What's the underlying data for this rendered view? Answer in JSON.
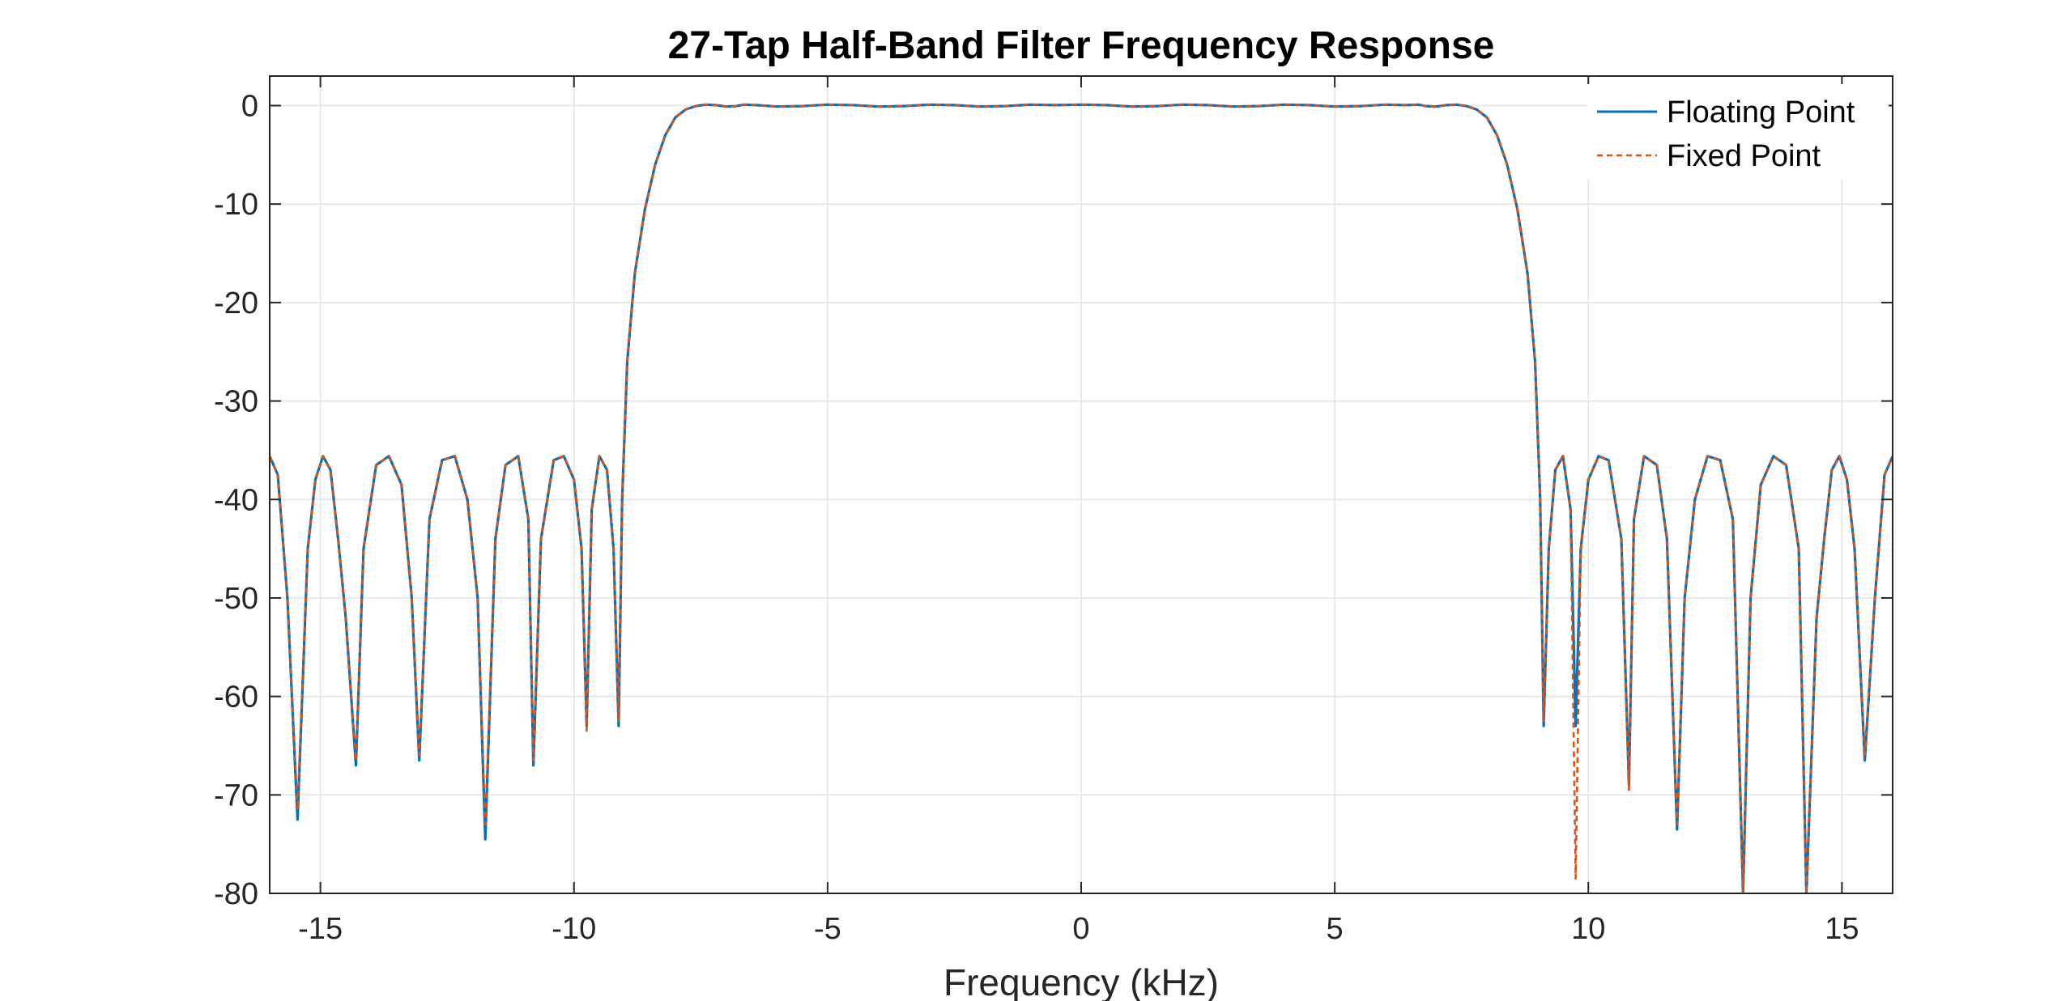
{
  "chart_data": {
    "type": "line",
    "title": "27-Tap Half-Band Filter Frequency Response",
    "xlabel": "Frequency (kHz)",
    "ylabel": "",
    "xlim": [
      -16,
      16
    ],
    "ylim": [
      -80,
      3
    ],
    "xticks": [
      -15,
      -10,
      -5,
      0,
      5,
      10,
      15
    ],
    "xtick_labels": [
      "-15",
      "-10",
      "-5",
      "0",
      "5",
      "10",
      "15"
    ],
    "yticks": [
      0,
      -10,
      -20,
      -30,
      -40,
      -50,
      -60,
      -70,
      -80
    ],
    "ytick_labels": [
      "0",
      "-10",
      "-20",
      "-30",
      "-40",
      "-50",
      "-60",
      "-70",
      "-80"
    ],
    "grid": true,
    "legend_position": "top-right",
    "series": [
      {
        "name": "Floating Point",
        "style": "solid",
        "color": "#0072BD",
        "x": [
          -16.0,
          -15.84,
          -15.65,
          -15.45,
          -15.25,
          -15.1,
          -14.95,
          -14.8,
          -14.65,
          -14.5,
          -14.3,
          -14.15,
          -13.9,
          -13.65,
          -13.4,
          -13.2,
          -13.05,
          -12.85,
          -12.6,
          -12.35,
          -12.1,
          -11.9,
          -11.75,
          -11.55,
          -11.35,
          -11.1,
          -10.9,
          -10.8,
          -10.65,
          -10.4,
          -10.2,
          -10.0,
          -9.85,
          -9.75,
          -9.65,
          -9.5,
          -9.35,
          -9.22,
          -9.12,
          -9.05,
          -8.95,
          -8.8,
          -8.6,
          -8.4,
          -8.2,
          -8.0,
          -7.8,
          -7.6,
          -7.4,
          -7.2,
          -7.0,
          -6.8,
          -6.65,
          -6.4,
          -6.0,
          -5.5,
          -5.0,
          -4.5,
          -4.0,
          -3.5,
          -3.0,
          -2.5,
          -2.0,
          -1.5,
          -1.0,
          -0.5,
          0.0,
          0.5,
          1.0,
          1.5,
          2.0,
          2.5,
          3.0,
          3.5,
          4.0,
          4.5,
          5.0,
          5.5,
          6.0,
          6.4,
          6.65,
          6.8,
          7.0,
          7.2,
          7.4,
          7.6,
          7.8,
          8.0,
          8.2,
          8.4,
          8.6,
          8.8,
          8.95,
          9.05,
          9.12,
          9.22,
          9.35,
          9.5,
          9.65,
          9.75,
          9.85,
          10.0,
          10.2,
          10.4,
          10.65,
          10.8,
          10.9,
          11.1,
          11.35,
          11.55,
          11.75,
          11.9,
          12.1,
          12.35,
          12.6,
          12.85,
          13.05,
          13.2,
          13.4,
          13.65,
          13.9,
          14.15,
          14.3,
          14.5,
          14.65,
          14.8,
          14.95,
          15.1,
          15.25,
          15.45,
          15.65,
          15.84,
          16.0
        ],
        "y": [
          -35.6,
          -37.5,
          -50.0,
          -72.5,
          -45.0,
          -38.0,
          -35.6,
          -37.0,
          -44.0,
          -52.0,
          -67.0,
          -45.0,
          -36.5,
          -35.6,
          -38.5,
          -50.0,
          -66.5,
          -42.0,
          -36.0,
          -35.6,
          -40.0,
          -50.0,
          -74.5,
          -44.0,
          -36.5,
          -35.6,
          -42.0,
          -67.0,
          -44.0,
          -36.0,
          -35.6,
          -38.0,
          -45.0,
          -63.0,
          -41.0,
          -35.6,
          -37.0,
          -45.0,
          -63.0,
          -40.0,
          -26.0,
          -17.0,
          -10.5,
          -6.0,
          -3.0,
          -1.2,
          -0.4,
          -0.05,
          0.1,
          0.05,
          -0.1,
          -0.05,
          0.1,
          0.05,
          -0.1,
          -0.05,
          0.1,
          0.05,
          -0.1,
          -0.05,
          0.1,
          0.05,
          -0.1,
          -0.05,
          0.1,
          0.05,
          0.1,
          0.05,
          -0.1,
          -0.05,
          0.1,
          0.05,
          -0.1,
          -0.05,
          0.1,
          0.05,
          -0.1,
          -0.05,
          0.1,
          0.05,
          0.1,
          -0.05,
          -0.1,
          0.05,
          0.1,
          -0.05,
          -0.4,
          -1.2,
          -3.0,
          -6.0,
          -10.5,
          -17.0,
          -26.0,
          -40.0,
          -63.0,
          -45.0,
          -37.0,
          -35.6,
          -41.0,
          -63.0,
          -45.0,
          -38.0,
          -35.6,
          -36.0,
          -44.0,
          -69.0,
          -42.0,
          -35.6,
          -36.5,
          -44.0,
          -73.5,
          -50.0,
          -40.0,
          -35.6,
          -36.0,
          -42.0,
          -80.0,
          -50.0,
          -38.5,
          -35.6,
          -36.5,
          -45.0,
          -80.0,
          -52.0,
          -44.0,
          -37.0,
          -35.6,
          -38.0,
          -45.0,
          -66.5,
          -50.0,
          -37.5,
          -35.6
        ]
      },
      {
        "name": "Fixed Point",
        "style": "dashed",
        "color": "#D95319",
        "x": [
          -16.0,
          -15.84,
          -15.65,
          -15.45,
          -15.25,
          -15.1,
          -14.95,
          -14.8,
          -14.65,
          -14.5,
          -14.3,
          -14.15,
          -13.9,
          -13.65,
          -13.4,
          -13.2,
          -13.05,
          -12.85,
          -12.6,
          -12.35,
          -12.1,
          -11.9,
          -11.75,
          -11.55,
          -11.35,
          -11.1,
          -10.9,
          -10.8,
          -10.65,
          -10.4,
          -10.2,
          -10.0,
          -9.85,
          -9.75,
          -9.65,
          -9.5,
          -9.35,
          -9.22,
          -9.12,
          -9.05,
          -8.95,
          -8.8,
          -8.6,
          -8.4,
          -8.2,
          -8.0,
          -7.8,
          -7.6,
          -7.4,
          -7.2,
          -7.0,
          -6.8,
          -6.65,
          -6.4,
          -6.0,
          -5.5,
          -5.0,
          -4.5,
          -4.0,
          -3.5,
          -3.0,
          -2.5,
          -2.0,
          -1.5,
          -1.0,
          -0.5,
          0.0,
          0.5,
          1.0,
          1.5,
          2.0,
          2.5,
          3.0,
          3.5,
          4.0,
          4.5,
          5.0,
          5.5,
          6.0,
          6.4,
          6.65,
          6.8,
          7.0,
          7.2,
          7.4,
          7.6,
          7.8,
          8.0,
          8.2,
          8.4,
          8.6,
          8.8,
          8.95,
          9.05,
          9.12,
          9.22,
          9.35,
          9.5,
          9.65,
          9.75,
          9.85,
          10.0,
          10.2,
          10.4,
          10.65,
          10.8,
          10.9,
          11.1,
          11.35,
          11.55,
          11.75,
          11.9,
          12.1,
          12.35,
          12.6,
          12.85,
          13.05,
          13.2,
          13.4,
          13.65,
          13.9,
          14.15,
          14.3,
          14.5,
          14.65,
          14.8,
          14.95,
          15.1,
          15.25,
          15.45,
          15.65,
          15.84,
          16.0
        ],
        "y": [
          -35.6,
          -37.5,
          -50.0,
          -71.5,
          -45.0,
          -38.0,
          -35.6,
          -37.0,
          -44.0,
          -52.0,
          -66.5,
          -45.0,
          -36.5,
          -35.6,
          -38.5,
          -50.0,
          -66.0,
          -42.0,
          -36.0,
          -35.6,
          -40.0,
          -50.0,
          -73.0,
          -44.0,
          -36.5,
          -35.6,
          -42.0,
          -66.5,
          -44.0,
          -36.0,
          -35.6,
          -38.0,
          -45.0,
          -63.5,
          -41.0,
          -35.6,
          -37.0,
          -45.0,
          -62.5,
          -40.0,
          -26.0,
          -17.0,
          -10.5,
          -6.0,
          -3.0,
          -1.2,
          -0.4,
          -0.05,
          0.1,
          0.05,
          -0.1,
          -0.05,
          0.1,
          0.05,
          -0.1,
          -0.05,
          0.1,
          0.05,
          -0.1,
          -0.05,
          0.1,
          0.05,
          -0.1,
          -0.05,
          0.1,
          0.05,
          0.1,
          0.05,
          -0.1,
          -0.05,
          0.1,
          0.05,
          -0.1,
          -0.05,
          0.1,
          0.05,
          -0.1,
          -0.05,
          0.1,
          0.05,
          0.1,
          -0.05,
          -0.1,
          0.05,
          0.1,
          -0.05,
          -0.4,
          -1.2,
          -3.0,
          -6.0,
          -10.5,
          -17.0,
          -26.0,
          -40.0,
          -62.5,
          -45.0,
          -37.0,
          -35.6,
          -41.0,
          -78.5,
          -45.0,
          -38.0,
          -35.6,
          -36.0,
          -44.0,
          -69.5,
          -42.0,
          -35.6,
          -36.5,
          -44.0,
          -73.0,
          -50.0,
          -40.0,
          -35.6,
          -36.0,
          -42.0,
          -80.0,
          -50.0,
          -38.5,
          -35.6,
          -36.5,
          -45.0,
          -80.0,
          -52.0,
          -44.0,
          -37.0,
          -35.6,
          -38.0,
          -45.0,
          -66.0,
          -50.0,
          -37.5,
          -35.6
        ]
      }
    ]
  }
}
